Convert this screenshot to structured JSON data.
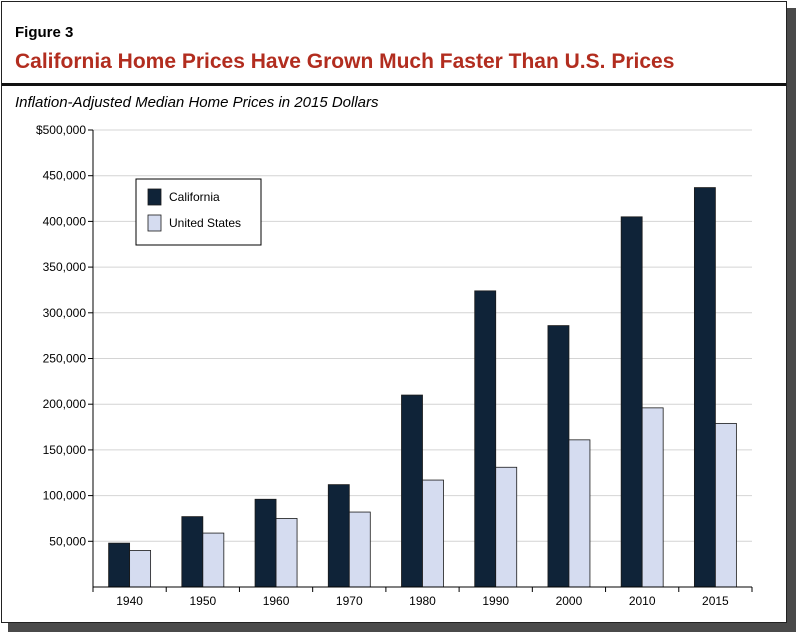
{
  "figure_label": "Figure 3",
  "title": "California Home Prices Have Grown Much Faster Than U.S. Prices",
  "subtitle": "Inflation-Adjusted Median Home Prices in 2015 Dollars",
  "colors": {
    "title": "#b22d1f",
    "California": "#0f2338",
    "United States": "#d5dcf0"
  },
  "chart_data": {
    "type": "bar",
    "categories": [
      "1940",
      "1950",
      "1960",
      "1970",
      "1980",
      "1990",
      "2000",
      "2010",
      "2015"
    ],
    "series": [
      {
        "name": "California",
        "values": [
          48000,
          77000,
          96000,
          112000,
          210000,
          324000,
          286000,
          405000,
          437000
        ]
      },
      {
        "name": "United States",
        "values": [
          40000,
          59000,
          75000,
          82000,
          117000,
          131000,
          161000,
          196000,
          179000
        ]
      }
    ],
    "ylim": [
      0,
      500000
    ],
    "yticks": [
      50000,
      100000,
      150000,
      200000,
      250000,
      300000,
      350000,
      400000,
      450000,
      500000
    ],
    "ytick_labels": [
      "50,000",
      "100,000",
      "150,000",
      "200,000",
      "250,000",
      "300,000",
      "350,000",
      "400,000",
      "450,000",
      "$500,000"
    ],
    "grid": true,
    "legend_position": "top-left"
  }
}
